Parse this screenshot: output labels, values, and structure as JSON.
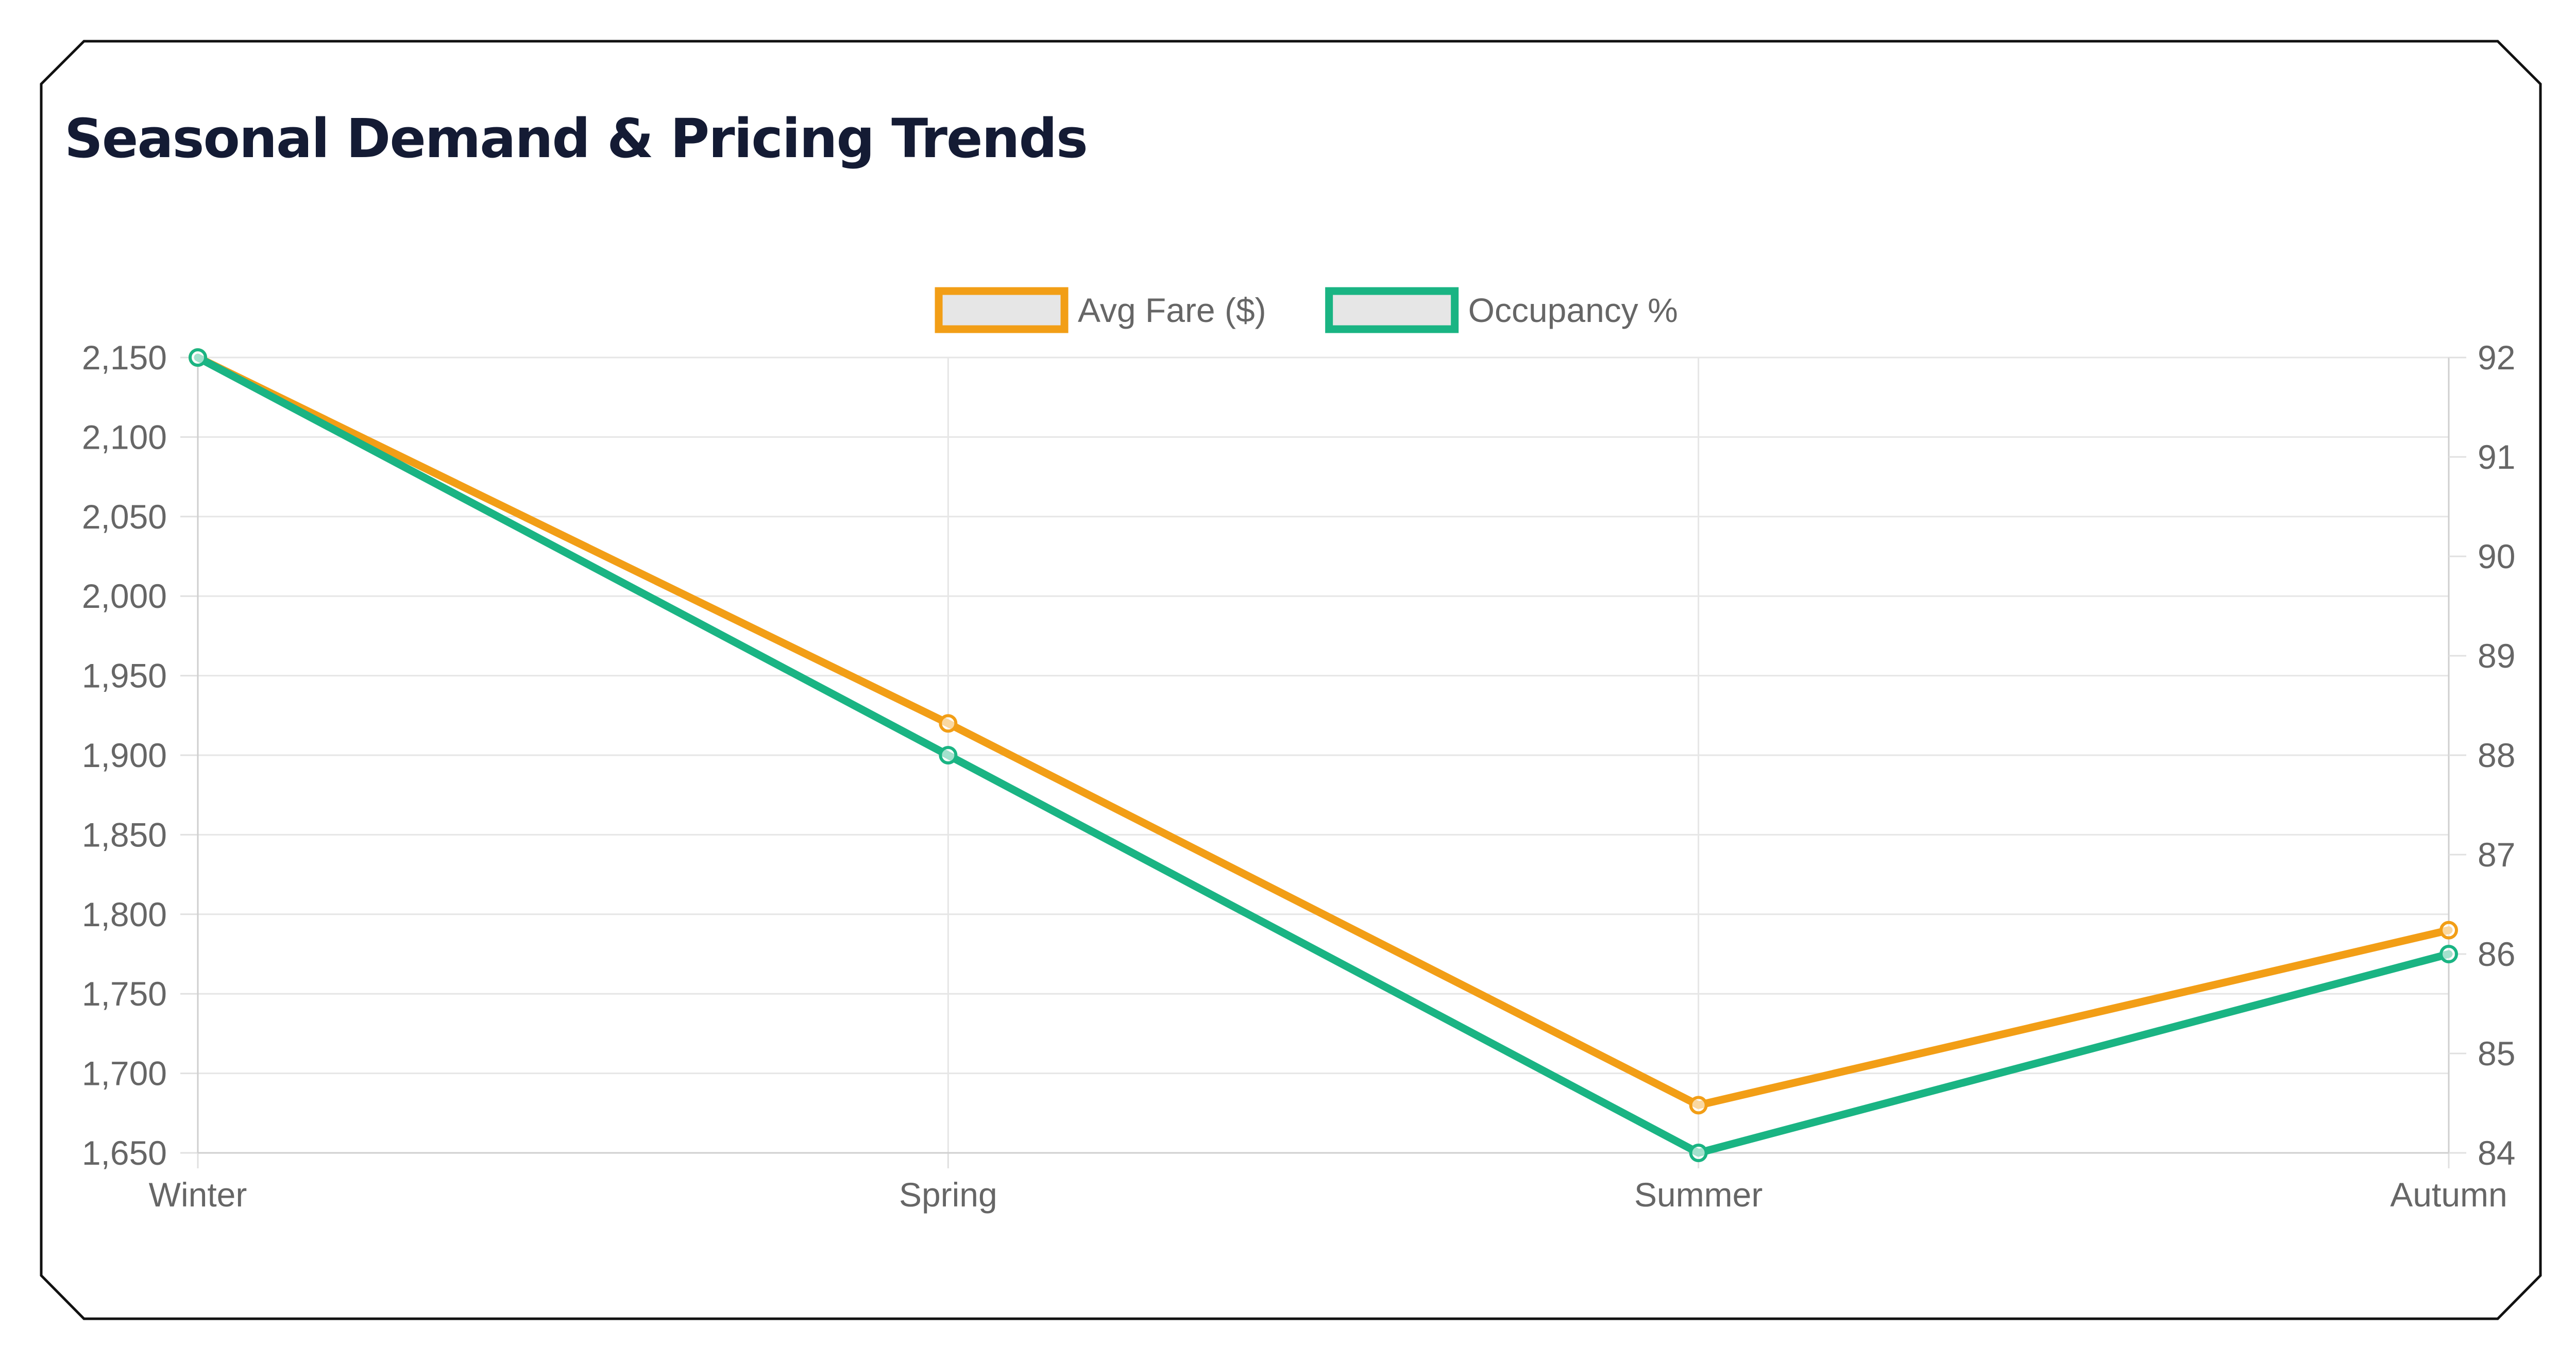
{
  "chart_data": {
    "type": "line",
    "title": "Seasonal Demand & Pricing Trends",
    "categories": [
      "Winter",
      "Spring",
      "Summer",
      "Autumn"
    ],
    "series": [
      {
        "name": "Avg Fare ($)",
        "axis": "left",
        "color": "#f29e16",
        "values": [
          2150,
          1920,
          1680,
          1790
        ]
      },
      {
        "name": "Occupancy %",
        "axis": "right",
        "color": "#1ab483",
        "values": [
          92,
          88,
          84,
          86
        ]
      }
    ],
    "y_left": {
      "range": [
        1650,
        2150
      ],
      "ticks": [
        "1,650",
        "1,700",
        "1,750",
        "1,800",
        "1,850",
        "1,900",
        "1,950",
        "2,000",
        "2,050",
        "2,100",
        "2,150"
      ]
    },
    "y_right": {
      "range": [
        84,
        92
      ],
      "ticks": [
        "84",
        "85",
        "86",
        "87",
        "88",
        "89",
        "90",
        "91",
        "92"
      ]
    },
    "grid": true,
    "legend": "top-center"
  }
}
